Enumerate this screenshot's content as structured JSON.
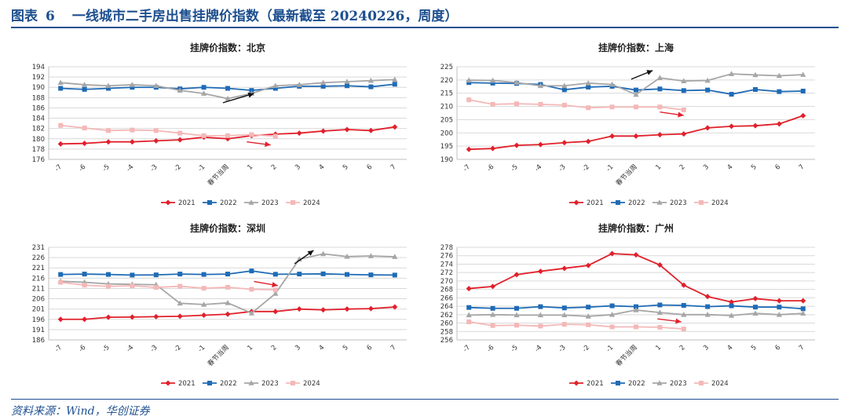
{
  "figure": {
    "label": "图表",
    "number": "6",
    "title": "一线城市二手房出售挂牌价指数（最新截至 20240226，周度）",
    "source": "资料来源：Wind，华创证券"
  },
  "chart_data": [
    {
      "type": "line",
      "title": "挂牌价指数：北京",
      "categories": [
        "-7",
        "-6",
        "-5",
        "-4",
        "-3",
        "-2",
        "-1",
        "春节当周",
        "1",
        "2",
        "3",
        "4",
        "5",
        "6",
        "7"
      ],
      "ylim": [
        176,
        194
      ],
      "yticks": [
        176,
        178,
        180,
        182,
        184,
        186,
        188,
        190,
        192,
        194
      ],
      "series": [
        {
          "name": "2021",
          "color": "#e0212b",
          "marker": "diamond",
          "values": [
            179.0,
            179.1,
            179.4,
            179.4,
            179.6,
            179.8,
            180.3,
            180.0,
            180.6,
            180.9,
            181.1,
            181.5,
            181.8,
            181.6,
            182.3
          ]
        },
        {
          "name": "2022",
          "color": "#1f6bb5",
          "marker": "square",
          "values": [
            189.8,
            189.6,
            189.8,
            190.0,
            190.0,
            189.7,
            190.0,
            189.8,
            189.4,
            189.8,
            190.2,
            190.2,
            190.3,
            190.1,
            190.6
          ]
        },
        {
          "name": "2023",
          "color": "#a6a6a6",
          "marker": "triangle",
          "values": [
            190.9,
            190.5,
            190.3,
            190.5,
            190.3,
            189.4,
            188.8,
            187.8,
            188.8,
            190.3,
            190.5,
            190.9,
            191.1,
            191.3,
            191.5
          ]
        },
        {
          "name": "2024",
          "color": "#f4b8b8",
          "marker": "square",
          "values": [
            182.6,
            182.1,
            181.6,
            181.7,
            181.6,
            181.1,
            180.6,
            180.6,
            180.8,
            180.5,
            null,
            null,
            null,
            null,
            null
          ]
        }
      ],
      "arrows": [
        {
          "color": "#111111",
          "from": [
            6.8,
            187.0
          ],
          "to": [
            8.1,
            188.8
          ]
        },
        {
          "color": "#e0212b",
          "from": [
            7.8,
            179.4
          ],
          "to": [
            8.8,
            178.8
          ]
        }
      ]
    },
    {
      "type": "line",
      "title": "挂牌价指数：上海",
      "categories": [
        "-7",
        "-6",
        "-5",
        "-4",
        "-3",
        "-2",
        "-1",
        "春节当周",
        "1",
        "2",
        "3",
        "4",
        "5",
        "6",
        "7"
      ],
      "ylim": [
        190,
        225
      ],
      "yticks": [
        190,
        195,
        200,
        205,
        210,
        215,
        220,
        225
      ],
      "series": [
        {
          "name": "2021",
          "color": "#e0212b",
          "marker": "diamond",
          "values": [
            193.8,
            194.1,
            195.3,
            195.6,
            196.3,
            196.8,
            198.8,
            198.8,
            199.3,
            199.6,
            201.9,
            202.5,
            202.7,
            203.4,
            206.5
          ]
        },
        {
          "name": "2022",
          "color": "#1f6bb5",
          "marker": "square",
          "values": [
            219.0,
            218.8,
            218.7,
            218.3,
            216.3,
            217.3,
            217.6,
            216.2,
            216.6,
            216.0,
            216.2,
            214.6,
            216.4,
            215.6,
            215.8
          ]
        },
        {
          "name": "2023",
          "color": "#a6a6a6",
          "marker": "triangle",
          "values": [
            219.9,
            219.8,
            219.0,
            217.8,
            217.8,
            218.8,
            218.3,
            214.5,
            220.8,
            219.6,
            219.8,
            222.3,
            221.9,
            221.6,
            222.0
          ]
        },
        {
          "name": "2024",
          "color": "#f4b8b8",
          "marker": "square",
          "values": [
            212.5,
            210.8,
            211.0,
            210.8,
            210.5,
            209.5,
            209.8,
            209.8,
            209.8,
            208.7,
            null,
            null,
            null,
            null,
            null
          ]
        }
      ],
      "arrows": [
        {
          "color": "#111111",
          "from": [
            6.8,
            220.3
          ],
          "to": [
            7.7,
            223.6
          ]
        },
        {
          "color": "#e0212b",
          "from": [
            8.0,
            207.9
          ],
          "to": [
            9.0,
            206.6
          ]
        }
      ]
    },
    {
      "type": "line",
      "title": "挂牌价指数：深圳",
      "categories": [
        "-7",
        "-6",
        "-5",
        "-4",
        "-3",
        "-2",
        "-1",
        "春节当周",
        "1",
        "2",
        "3",
        "4",
        "5",
        "6",
        "7"
      ],
      "ylim": [
        186,
        231
      ],
      "yticks": [
        186,
        191,
        196,
        201,
        206,
        211,
        216,
        221,
        226,
        231
      ],
      "series": [
        {
          "name": "2021",
          "color": "#e0212b",
          "marker": "diamond",
          "values": [
            196.0,
            196.0,
            197.0,
            197.1,
            197.3,
            197.5,
            198.0,
            198.5,
            199.8,
            199.8,
            201.0,
            200.6,
            201.0,
            201.2,
            202.0
          ]
        },
        {
          "name": "2022",
          "color": "#1f6bb5",
          "marker": "square",
          "values": [
            217.8,
            218.0,
            217.8,
            217.5,
            217.6,
            218.0,
            217.8,
            218.0,
            219.5,
            217.9,
            218.0,
            218.1,
            217.8,
            217.6,
            217.5
          ]
        },
        {
          "name": "2023",
          "color": "#a6a6a6",
          "marker": "triangle",
          "values": [
            214.5,
            214.0,
            213.2,
            213.0,
            212.8,
            203.8,
            203.2,
            204.0,
            199.0,
            208.5,
            225.2,
            227.8,
            226.5,
            226.8,
            226.4
          ]
        },
        {
          "name": "2024",
          "color": "#f4b8b8",
          "marker": "square",
          "values": [
            214.0,
            212.6,
            212.0,
            212.3,
            211.5,
            212.1,
            211.1,
            211.6,
            210.6,
            210.3,
            null,
            null,
            null,
            null,
            null
          ]
        }
      ],
      "arrows": [
        {
          "color": "#111111",
          "from": [
            9.8,
            223.0
          ],
          "to": [
            10.6,
            229.5
          ]
        },
        {
          "color": "#e0212b",
          "from": [
            8.1,
            214.4
          ],
          "to": [
            9.1,
            212.4
          ]
        }
      ]
    },
    {
      "type": "line",
      "title": "挂牌价指数：广州",
      "categories": [
        "-7",
        "-6",
        "-5",
        "-4",
        "-3",
        "-2",
        "-1",
        "春节当周",
        "1",
        "2",
        "3",
        "4",
        "5",
        "6",
        "7"
      ],
      "ylim": [
        256,
        278
      ],
      "yticks": [
        256,
        258,
        260,
        262,
        264,
        266,
        268,
        270,
        272,
        274,
        276,
        278
      ],
      "series": [
        {
          "name": "2021",
          "color": "#e0212b",
          "marker": "diamond",
          "values": [
            268.2,
            268.7,
            271.5,
            272.3,
            273.0,
            273.7,
            276.5,
            276.2,
            273.8,
            269.0,
            266.3,
            265.0,
            265.8,
            265.3,
            265.3
          ]
        },
        {
          "name": "2022",
          "color": "#1f6bb5",
          "marker": "square",
          "values": [
            263.7,
            263.5,
            263.5,
            263.9,
            263.6,
            263.8,
            264.1,
            263.9,
            264.3,
            264.2,
            263.9,
            264.1,
            263.8,
            263.8,
            263.4
          ]
        },
        {
          "name": "2023",
          "color": "#a6a6a6",
          "marker": "triangle",
          "values": [
            261.9,
            262.0,
            261.9,
            261.9,
            261.9,
            261.6,
            262.0,
            263.1,
            262.5,
            262.0,
            262.0,
            261.8,
            262.3,
            262.0,
            262.3
          ]
        },
        {
          "name": "2024",
          "color": "#f4b8b8",
          "marker": "square",
          "values": [
            260.3,
            259.4,
            259.5,
            259.3,
            259.7,
            259.6,
            259.1,
            259.1,
            259.0,
            258.6,
            null,
            null,
            null,
            null,
            null
          ]
        }
      ],
      "arrows": [
        {
          "color": "#e0212b",
          "from": [
            7.9,
            261.0
          ],
          "to": [
            8.9,
            260.3
          ]
        }
      ]
    }
  ]
}
